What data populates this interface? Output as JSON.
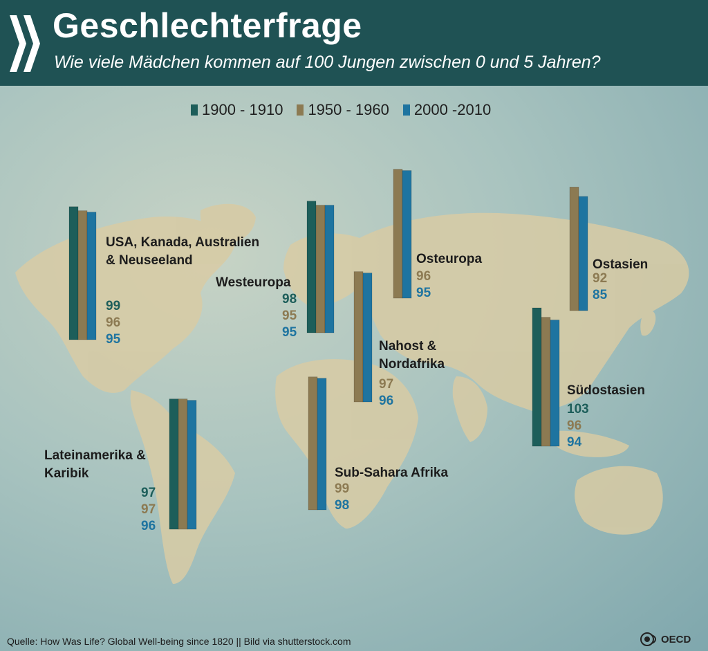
{
  "header": {
    "title": "Geschlechterfrage",
    "subtitle": "Wie viele Mädchen kommen auf 100 Jungen zwischen 0 und 5 Jahren?"
  },
  "colors": {
    "header_bg": "#1f5254",
    "series_1": "#1d5e5a",
    "series_2": "#8c7a52",
    "series_3": "#1e74a0"
  },
  "icons": {
    "header": "chevron-right-icon",
    "logo": "oecd-logo-icon"
  },
  "chart_data": {
    "type": "bar",
    "title": "",
    "xlabel": "",
    "ylabel": "",
    "legend": "top-center",
    "series_names": [
      "1900 - 1910",
      "1950 - 1960",
      "2000 -2010"
    ],
    "categories": [
      "USA, Kanada, Australien & Neuseeland",
      "Westeuropa",
      "Osteuropa",
      "Nahost & Nordafrika",
      "Ostasien",
      "Südostasien",
      "Lateinamerika & Karibik",
      "Sub-Sahara Afrika"
    ],
    "regions": [
      {
        "label_lines": [
          "USA, Kanada, Australien",
          "& Neuseeland"
        ],
        "values": [
          99,
          96,
          95
        ]
      },
      {
        "label_lines": [
          "Westeuropa"
        ],
        "values": [
          98,
          95,
          95
        ]
      },
      {
        "label_lines": [
          "Osteuropa"
        ],
        "values": [
          null,
          96,
          95
        ]
      },
      {
        "label_lines": [
          "Nahost &",
          "Nordafrika"
        ],
        "values": [
          null,
          97,
          96
        ]
      },
      {
        "label_lines": [
          "Ostasien"
        ],
        "values": [
          null,
          92,
          85
        ]
      },
      {
        "label_lines": [
          "Südostasien"
        ],
        "values": [
          103,
          96,
          94
        ]
      },
      {
        "label_lines": [
          "Lateinamerika &",
          "Karibik"
        ],
        "values": [
          97,
          97,
          96
        ]
      },
      {
        "label_lines": [
          "Sub-Sahara Afrika"
        ],
        "values": [
          null,
          99,
          98
        ]
      }
    ]
  },
  "footer": {
    "source": "Quelle: How Was Life? Global Well-being since 1820 || Bild via shutterstock.com",
    "logo_text": "OECD"
  }
}
